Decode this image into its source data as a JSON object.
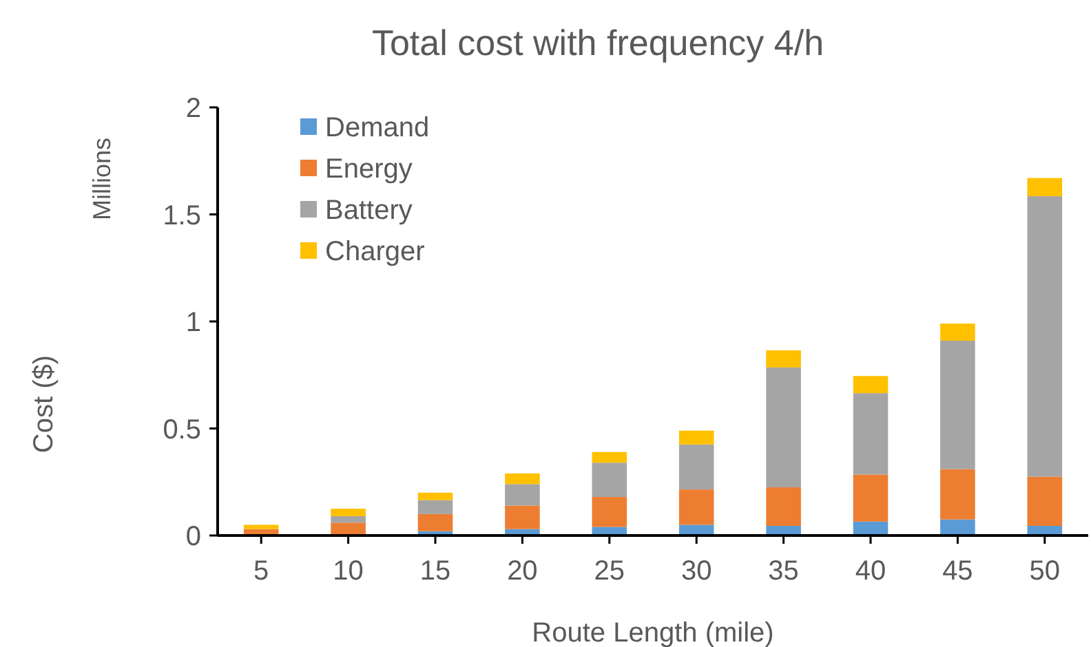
{
  "chart_data": {
    "type": "bar",
    "stacked": true,
    "title": "Total cost with frequency 4/h",
    "xlabel": "Route Length (mile)",
    "ylabel": "Cost ($)",
    "annotations": [
      "Millions"
    ],
    "categories": [
      "5",
      "10",
      "15",
      "20",
      "25",
      "30",
      "35",
      "40",
      "45",
      "50"
    ],
    "series": [
      {
        "name": "Demand",
        "color": "#5b9bd5",
        "values": [
          null,
          null,
          0.02,
          0.03,
          0.04,
          0.05,
          0.045,
          0.065,
          0.075,
          0.045
        ]
      },
      {
        "name": "Energy",
        "color": "#ed7d31",
        "values": [
          0.03,
          0.06,
          0.08,
          0.11,
          0.14,
          0.165,
          0.18,
          0.22,
          0.235,
          0.23
        ]
      },
      {
        "name": "Battery",
        "color": "#a5a5a5",
        "values": [
          null,
          0.03,
          0.065,
          0.1,
          0.16,
          0.21,
          0.56,
          0.38,
          0.6,
          1.31
        ]
      },
      {
        "name": "Charger",
        "color": "#ffc000",
        "values": [
          0.02,
          0.035,
          0.035,
          0.05,
          0.05,
          0.065,
          0.08,
          0.08,
          0.08,
          0.085
        ]
      }
    ],
    "ylim": [
      0,
      2
    ],
    "yticks": [
      0,
      0.5,
      1,
      1.5,
      2
    ],
    "legend": "top left"
  }
}
